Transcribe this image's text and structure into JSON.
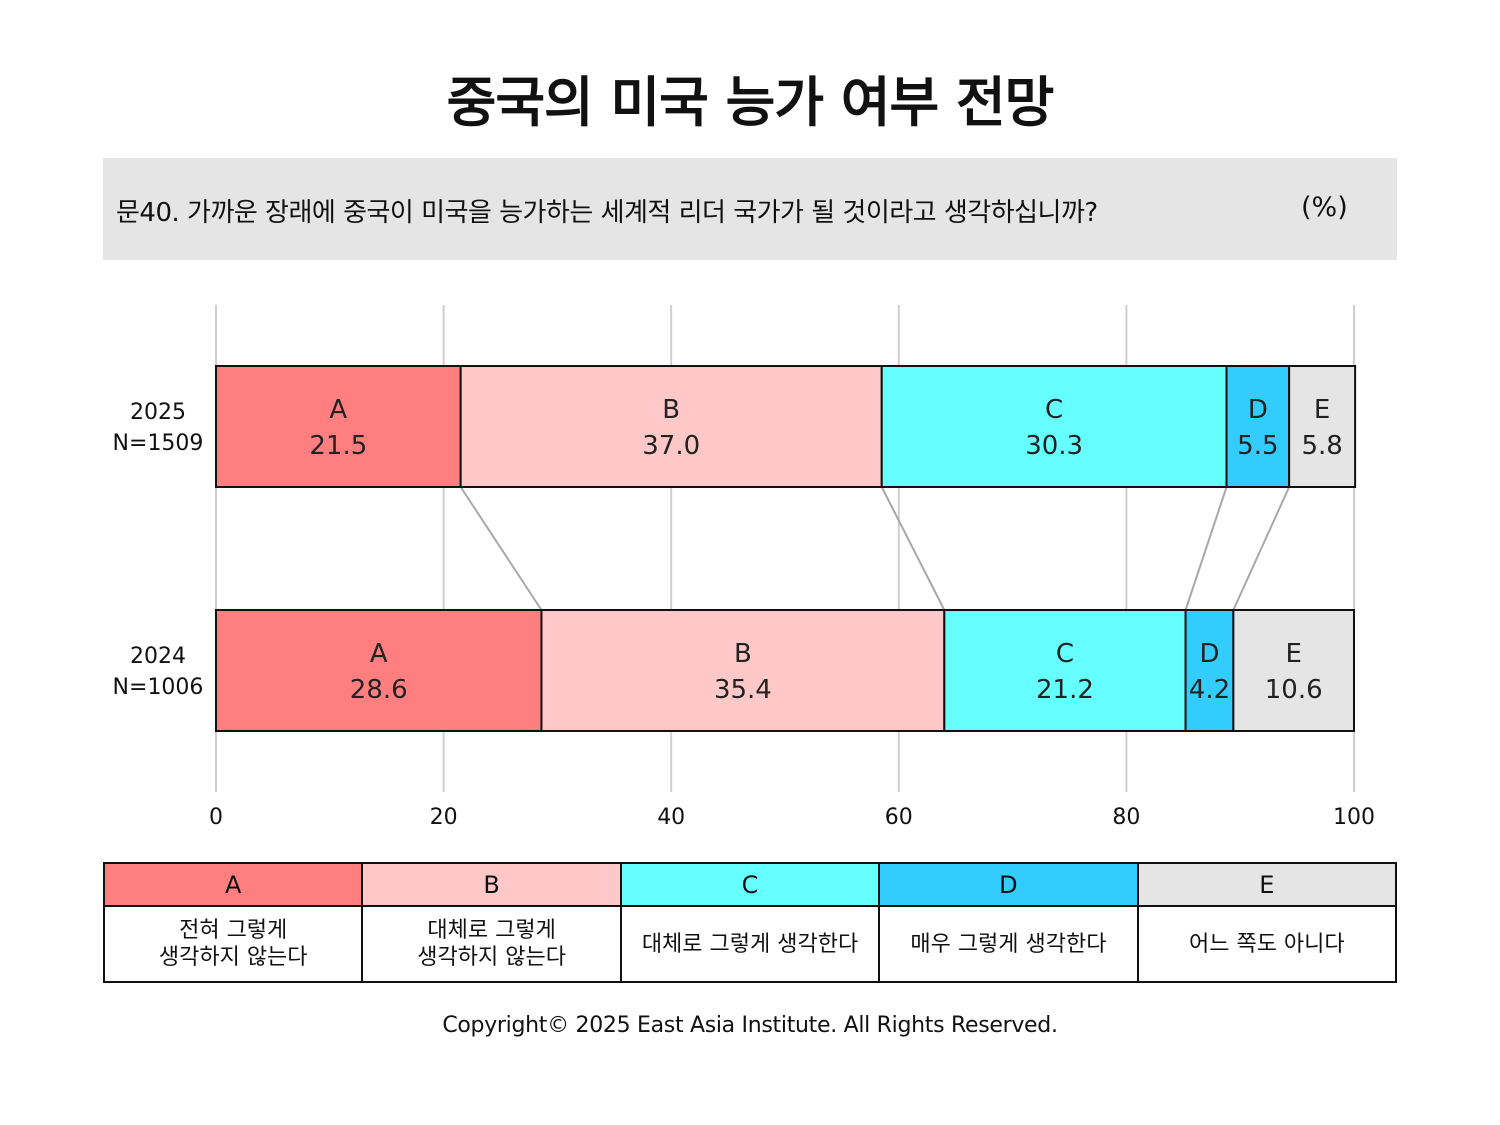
{
  "title": "중국의 미국 능가 여부 전망",
  "question": {
    "text": "문40. 가까운 장래에 중국이 미국을 능가하는 세계적 리더 국가가 될 것이라고 생각하십니까?",
    "unit": "(%)"
  },
  "chart_data": {
    "type": "bar",
    "orientation": "horizontal",
    "stacked": true,
    "xlim": [
      0,
      100
    ],
    "xticks": [
      "0",
      "20",
      "40",
      "60",
      "80",
      "100"
    ],
    "grid": true,
    "rows": [
      {
        "year": "2025",
        "n": "N=1509",
        "values": [
          21.5,
          37.0,
          30.3,
          5.5,
          5.8
        ],
        "labels": [
          "21.5",
          "37.0",
          "30.3",
          "5.5",
          "5.8"
        ]
      },
      {
        "year": "2024",
        "n": "N=1006",
        "values": [
          28.6,
          35.4,
          21.2,
          4.2,
          10.6
        ],
        "labels": [
          "28.6",
          "35.4",
          "21.2",
          "4.2",
          "10.6"
        ]
      }
    ],
    "categories": [
      {
        "key": "A",
        "label": "전혀 그렇게\n생각하지 않는다",
        "color": "#ff7f81"
      },
      {
        "key": "B",
        "label": "대체로 그렇게\n생각하지 않는다",
        "color": "#ffc8c8"
      },
      {
        "key": "C",
        "label": "대체로 그렇게 생각한다",
        "color": "#66ffff"
      },
      {
        "key": "D",
        "label": "매우 그렇게 생각한다",
        "color": "#33ccff"
      },
      {
        "key": "E",
        "label": "어느 쪽도 아니다",
        "color": "#e5e5e5"
      }
    ]
  },
  "copyright": "Copyright© 2025 East Asia Institute. All Rights Reserved."
}
